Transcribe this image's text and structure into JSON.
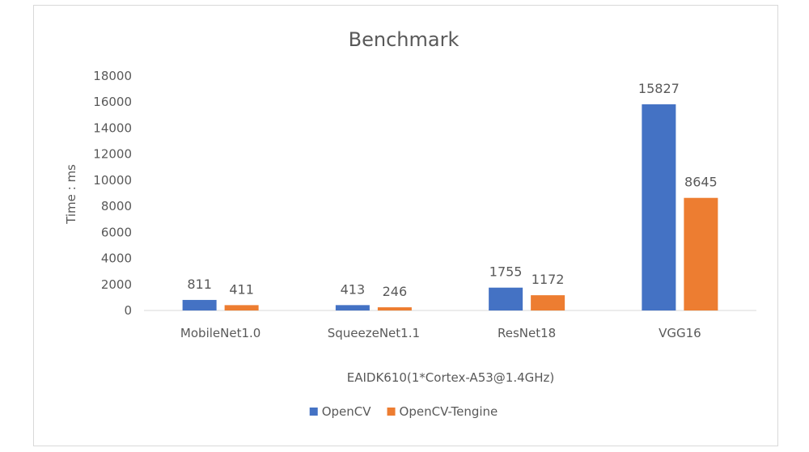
{
  "chart_data": {
    "type": "bar",
    "title": "Benchmark",
    "xlabel": "EAIDK610(1*Cortex-A53@1.4GHz)",
    "ylabel": "Time : ms",
    "categories": [
      "MobileNet1.0",
      "SqueezeNet1.1",
      "ResNet18",
      "VGG16"
    ],
    "series": [
      {
        "name": "OpenCV",
        "values": [
          811,
          413,
          1755,
          15827
        ],
        "color": "#4472c4"
      },
      {
        "name": "OpenCV-Tengine",
        "values": [
          411,
          246,
          1172,
          8645
        ],
        "color": "#ed7d31"
      }
    ],
    "ylim": [
      0,
      18000
    ],
    "yticks": [
      0,
      2000,
      4000,
      6000,
      8000,
      10000,
      12000,
      14000,
      16000,
      18000
    ],
    "grid": false,
    "legend_position": "bottom",
    "data_labels": true
  }
}
